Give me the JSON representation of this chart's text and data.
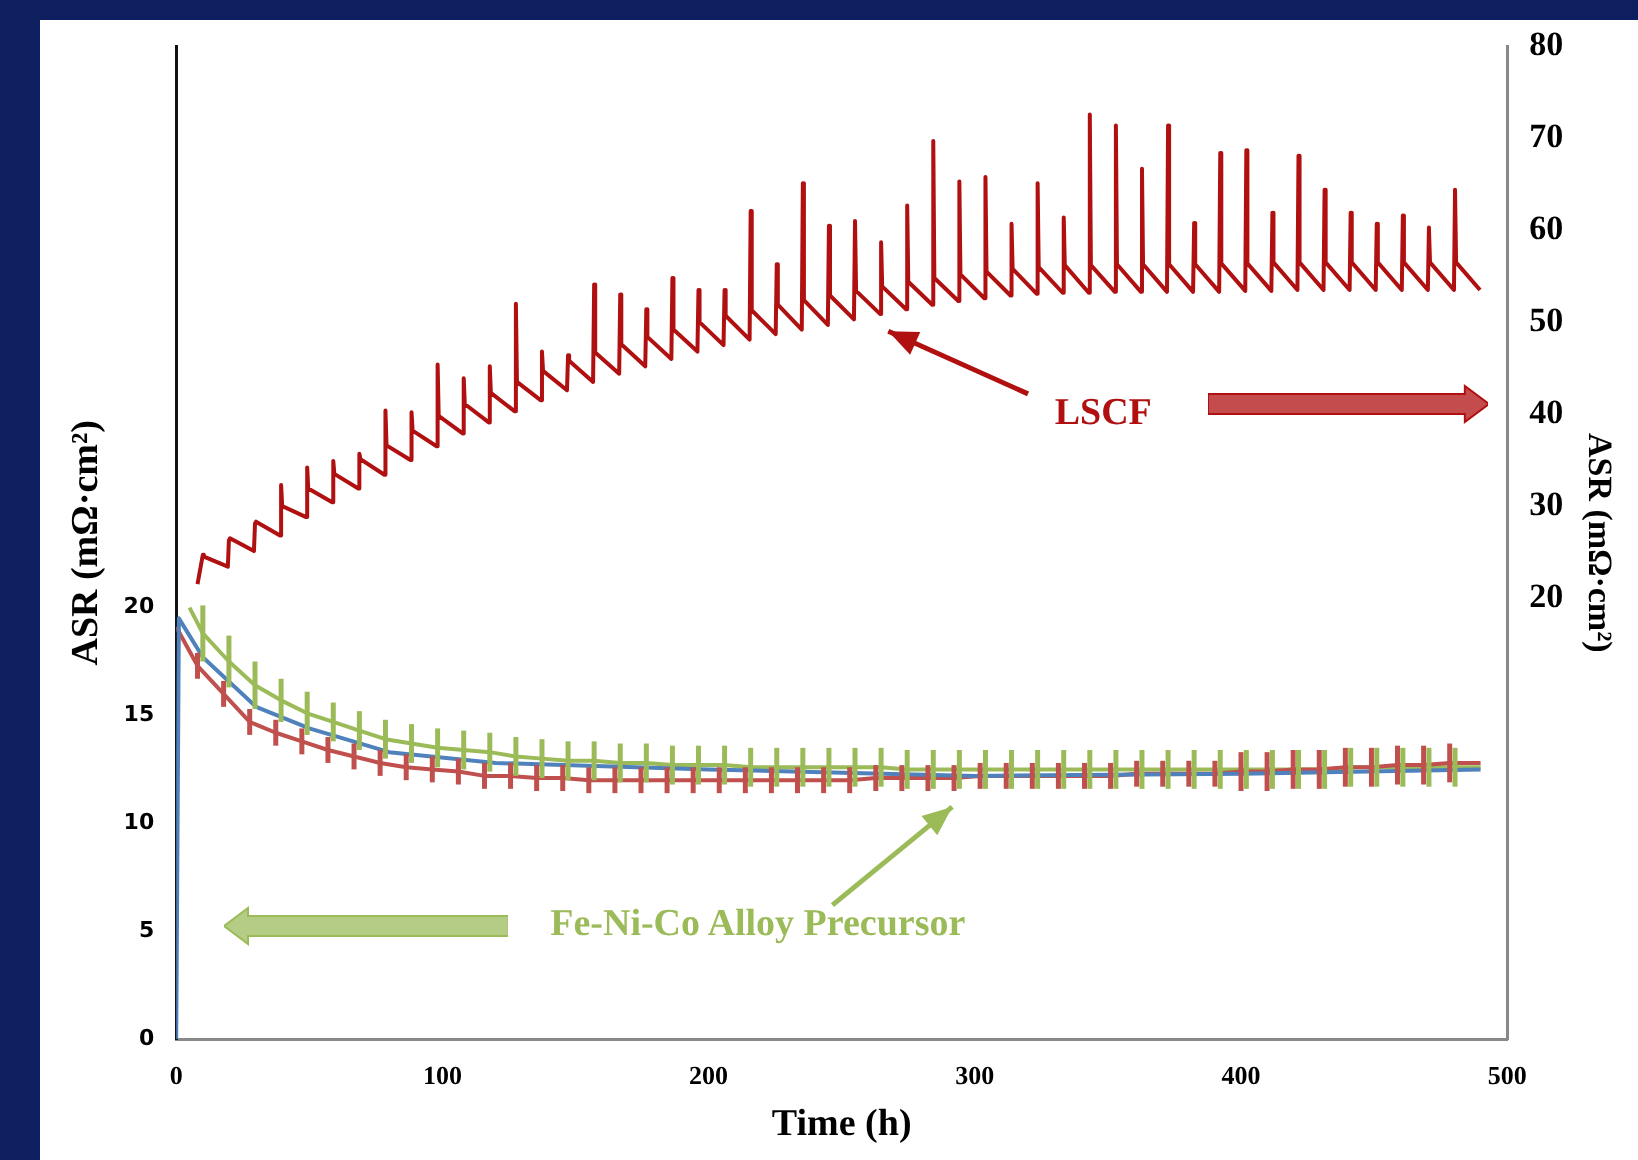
{
  "chart_data": {
    "type": "line",
    "xlabel": "Time (h)",
    "ylabel": "ASR (mΩ·cm²)",
    "y2label": "ASR (mΩ·cm²)",
    "xlim": [
      0,
      500
    ],
    "xticks": [
      0,
      100,
      200,
      300,
      400,
      500
    ],
    "ylim": [
      0,
      46
    ],
    "yticks": [
      0,
      5,
      10,
      15,
      20
    ],
    "y2lim": [
      -28,
      80
    ],
    "y2ticks": [
      20,
      30,
      40,
      50,
      60,
      70,
      80
    ],
    "grid": false,
    "legend": false,
    "annotations": [
      "LSCF",
      "Fe-Ni-Co Alloy Precursor"
    ],
    "series": [
      {
        "color": "#b01010",
        "axis": "y2",
        "x": [
          8,
          10,
          10.4,
          19.4,
          19.8,
          20.2,
          29.2,
          29.6,
          30,
          39,
          39.4,
          39.8,
          48.8,
          49.2,
          49.6,
          58.6,
          59,
          59.4,
          68.4,
          68.8,
          69.2,
          78.2,
          78.6,
          79,
          88,
          88.4,
          88.8,
          97.8,
          98.2,
          98.6,
          107.6,
          108,
          108.4,
          117.4,
          117.8,
          118.2,
          127.2,
          127.6,
          128,
          137,
          137.4,
          137.8,
          146.8,
          147.2,
          147.6,
          156.6,
          157,
          157.4,
          166.4,
          166.8,
          167.2,
          176.2,
          176.6,
          177,
          186,
          186.4,
          186.8,
          195.8,
          196.2,
          196.6,
          205.6,
          206,
          206.4,
          215.4,
          215.8,
          216.2,
          225.2,
          225.6,
          226,
          235,
          235.4,
          235.8,
          244.8,
          245.2,
          245.6,
          254.6,
          255,
          255.4,
          264.4,
          264.8,
          265.2,
          274.2,
          274.6,
          275,
          284,
          284.4,
          284.8,
          293.8,
          294.2,
          294.6,
          303.6,
          304,
          304.4,
          313.4,
          313.8,
          314.2,
          323.2,
          323.6,
          324,
          333,
          333.4,
          333.8,
          342.8,
          343.2,
          343.6,
          352.6,
          353,
          353.4,
          362.4,
          362.8,
          363.2,
          372.2,
          372.6,
          373,
          382,
          382.4,
          382.8,
          391.8,
          392.2,
          392.6,
          401.6,
          402,
          402.4,
          411.4,
          411.8,
          412.2,
          421.2,
          421.6,
          422,
          431,
          431.4,
          431.8,
          440.8,
          441.2,
          441.6,
          450.6,
          451,
          451.4,
          460.4,
          460.8,
          461.2,
          470.2,
          470.6,
          471,
          480,
          480.4,
          480.8,
          489.8
        ],
        "values": [
          21.5,
          24.7,
          24.5,
          23.4,
          26.3,
          26.5,
          25.1,
          28.1,
          28.3,
          26.8,
          32.3,
          30,
          28.8,
          34.2,
          31.9,
          30.4,
          34.9,
          33.5,
          31.9,
          35.7,
          35.1,
          33.4,
          40.4,
          36.6,
          35,
          40.2,
          38.2,
          36.5,
          45.4,
          39.8,
          37.9,
          43.9,
          41.1,
          39.1,
          45.2,
          42.3,
          40.3,
          52,
          43.5,
          41.5,
          46.8,
          44.7,
          42.6,
          46.4,
          45.8,
          43.5,
          54.1,
          46.7,
          44.4,
          53,
          47.6,
          45.2,
          51.4,
          48.4,
          46,
          54.8,
          49.2,
          46.8,
          53.5,
          50,
          47.5,
          53.5,
          50.7,
          48.1,
          62.1,
          51.3,
          48.7,
          56.3,
          51.9,
          49.2,
          65.1,
          52.4,
          49.7,
          60.5,
          52.9,
          50.3,
          61,
          53.4,
          50.9,
          58.7,
          53.9,
          51.4,
          62.7,
          54.4,
          51.9,
          69.7,
          54.8,
          52.3,
          65.3,
          55.2,
          52.6,
          65.8,
          55.5,
          52.9,
          60.7,
          55.8,
          53.1,
          65.1,
          56,
          53.2,
          61.4,
          56.2,
          53.2,
          72.6,
          56.2,
          53.3,
          71.4,
          56.3,
          53.3,
          66.7,
          56.3,
          53.3,
          71.4,
          56.3,
          53.3,
          60.8,
          56.3,
          53.3,
          68.4,
          56.4,
          53.4,
          68.7,
          56.4,
          53.4,
          61.9,
          56.5,
          53.5,
          68.1,
          56.5,
          53.5,
          64.4,
          56.5,
          53.5,
          61.9,
          56.5,
          53.5,
          60.7,
          56.5,
          53.5,
          61.6,
          56.5,
          53.5,
          60.3,
          56.5,
          53.5,
          64.4,
          56.5,
          53.5
        ]
      },
      {
        "color": "#4f81bd",
        "x": [
          0,
          1,
          10,
          30,
          50,
          80,
          120,
          200,
          300,
          400,
          490
        ],
        "values": [
          0,
          19.5,
          17.7,
          15.4,
          14.4,
          13.3,
          12.8,
          12.5,
          12.2,
          12.3,
          12.5
        ]
      },
      {
        "color": "#c0504d",
        "x": [
          0,
          8,
          17.8,
          27.6,
          37.4,
          47.2,
          57,
          66.8,
          76.6,
          86.4,
          96.2,
          106,
          115.8,
          125.6,
          135.4,
          145.2,
          155,
          164.8,
          174.6,
          184.4,
          194.2,
          204,
          213.8,
          223.6,
          233.4,
          243.2,
          253,
          262.8,
          272.6,
          282.4,
          292.2,
          302,
          311.8,
          321.6,
          331.4,
          341.2,
          351,
          360.8,
          370.6,
          380.4,
          390.2,
          400,
          409.8,
          419.6,
          429.4,
          439.2,
          449,
          458.8,
          468.6,
          478.4,
          490
        ],
        "values": [
          19.1,
          17.3,
          16,
          14.7,
          14.2,
          13.8,
          13.4,
          13.1,
          12.8,
          12.6,
          12.5,
          12.4,
          12.2,
          12.2,
          12.1,
          12.1,
          12,
          12,
          12,
          12,
          12,
          12,
          12,
          12,
          12,
          12,
          12,
          12.1,
          12.1,
          12.1,
          12.1,
          12.2,
          12.2,
          12.2,
          12.2,
          12.2,
          12.2,
          12.3,
          12.3,
          12.3,
          12.3,
          12.4,
          12.4,
          12.5,
          12.5,
          12.6,
          12.6,
          12.7,
          12.7,
          12.8,
          12.8
        ],
        "errors": [
          null,
          0.6,
          0.6,
          0.6,
          0.6,
          0.6,
          0.6,
          0.6,
          0.6,
          0.6,
          0.6,
          0.6,
          0.6,
          0.6,
          0.6,
          0.6,
          0.6,
          0.6,
          0.6,
          0.6,
          0.6,
          0.6,
          0.6,
          0.6,
          0.6,
          0.6,
          0.6,
          0.6,
          0.6,
          0.6,
          0.6,
          0.6,
          0.6,
          0.6,
          0.6,
          0.6,
          0.6,
          0.6,
          0.6,
          0.6,
          0.6,
          0.9,
          0.9,
          0.9,
          0.9,
          0.9,
          0.9,
          0.9,
          0.9,
          0.9,
          null
        ]
      },
      {
        "color": "#9bbb59",
        "x": [
          5,
          10,
          19.8,
          29.6,
          39.4,
          49.2,
          59,
          68.8,
          78.6,
          88.4,
          98.2,
          108,
          117.8,
          127.6,
          137.4,
          147.2,
          157,
          166.8,
          176.6,
          186.4,
          196.2,
          206,
          215.8,
          225.6,
          235.4,
          245.2,
          255,
          264.8,
          274.6,
          284.4,
          294.2,
          304,
          313.8,
          323.6,
          333.4,
          343.2,
          353,
          362.8,
          372.6,
          382.4,
          392.2,
          402,
          411.8,
          421.6,
          431.4,
          441.2,
          451,
          460.8,
          470.6,
          480.4,
          490
        ],
        "values": [
          20,
          18.8,
          17.5,
          16.4,
          15.7,
          15.1,
          14.7,
          14.3,
          13.9,
          13.7,
          13.5,
          13.4,
          13.3,
          13.1,
          13,
          12.9,
          12.9,
          12.8,
          12.8,
          12.7,
          12.7,
          12.7,
          12.6,
          12.6,
          12.6,
          12.6,
          12.6,
          12.6,
          12.5,
          12.5,
          12.5,
          12.5,
          12.5,
          12.5,
          12.5,
          12.5,
          12.5,
          12.5,
          12.5,
          12.5,
          12.5,
          12.5,
          12.5,
          12.5,
          12.5,
          12.6,
          12.6,
          12.6,
          12.6,
          12.6,
          12.6
        ],
        "errors": [
          null,
          1.3,
          1.2,
          1.1,
          1,
          1,
          0.9,
          0.9,
          0.9,
          0.9,
          0.9,
          0.9,
          0.9,
          0.9,
          0.9,
          0.9,
          0.9,
          0.9,
          0.9,
          0.9,
          0.9,
          0.9,
          0.9,
          0.9,
          0.9,
          0.9,
          0.9,
          0.9,
          0.9,
          0.9,
          0.9,
          0.9,
          0.9,
          0.9,
          0.9,
          0.9,
          0.9,
          0.9,
          0.9,
          0.9,
          0.9,
          0.9,
          0.9,
          0.9,
          0.9,
          0.9,
          0.9,
          0.9,
          0.9,
          0.9,
          null
        ]
      }
    ]
  }
}
